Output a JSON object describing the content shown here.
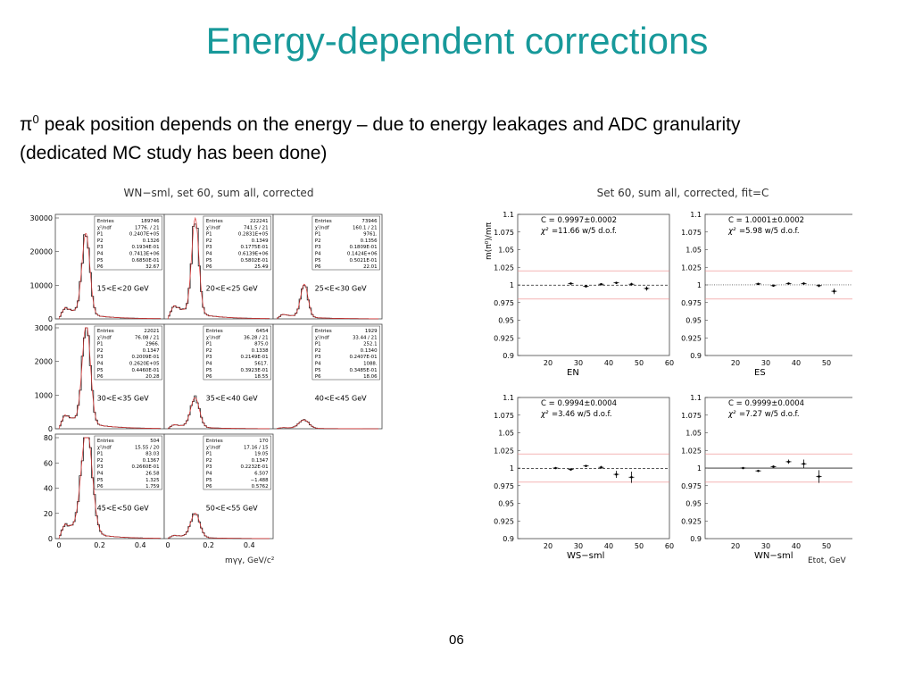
{
  "slide": {
    "title": "Energy-dependent corrections",
    "line1_symbol": "π",
    "line1_sup": "0",
    "line1_rest": " peak position depends on the energy – due to energy leakages and ADC granularity",
    "line2": "(dedicated MC study has been done)",
    "slide_number": "06"
  },
  "chart_data": [
    {
      "type": "histogram-grid",
      "title": "WN−sml, set 60, sum all, corrected",
      "xlabel": "mγγ, GeV/c²",
      "panels": [
        {
          "label": "15<E<20 GeV",
          "yticks": [
            "30000",
            "20000",
            "10000",
            "0"
          ],
          "ymax": 30000,
          "stats": [
            [
              "Entries",
              "189746"
            ],
            [
              "χ²/ndf",
              "1776. / 21"
            ],
            [
              "P1",
              "0.2407E+05"
            ],
            [
              "P2",
              "0.1326"
            ],
            [
              "P3",
              "0.1934E-01"
            ],
            [
              "P4",
              "0.7413E+06"
            ],
            [
              "P5",
              "0.6850E-01"
            ],
            [
              "P6",
              "32.67"
            ]
          ]
        },
        {
          "label": "20<E<25 GeV",
          "yticks": [],
          "ymax": 30000,
          "stats": [
            [
              "Entries",
              "222241"
            ],
            [
              "χ²/ndf",
              "741.5 / 21"
            ],
            [
              "P1",
              "0.2831E+05"
            ],
            [
              "P2",
              "0.1349"
            ],
            [
              "P3",
              "0.1775E-01"
            ],
            [
              "P4",
              "0.6139E+06"
            ],
            [
              "P5",
              "0.5802E-01"
            ],
            [
              "P6",
              "25.49"
            ]
          ]
        },
        {
          "label": "25<E<30 GeV",
          "yticks": [],
          "ymax": 30000,
          "stats": [
            [
              "Entries",
              "73946"
            ],
            [
              "χ²/ndf",
              "160.1 / 21"
            ],
            [
              "P1",
              "9761."
            ],
            [
              "P2",
              "0.1356"
            ],
            [
              "P3",
              "0.1809E-01"
            ],
            [
              "P4",
              "0.1424E+06"
            ],
            [
              "P5",
              "0.5021E-01"
            ],
            [
              "P6",
              "22.01"
            ]
          ]
        },
        {
          "label": "30<E<35 GeV",
          "yticks": [
            "3000",
            "2000",
            "1000",
            "0"
          ],
          "ymax": 3000,
          "stats": [
            [
              "Entries",
              "22021"
            ],
            [
              "χ²/ndf",
              "76.08 / 21"
            ],
            [
              "P1",
              "2966."
            ],
            [
              "P2",
              "0.1347"
            ],
            [
              "P3",
              "0.2009E-01"
            ],
            [
              "P4",
              "0.2620E+05"
            ],
            [
              "P5",
              "0.4460E-01"
            ],
            [
              "P6",
              "20.28"
            ]
          ]
        },
        {
          "label": "35<E<40 GeV",
          "yticks": [],
          "ymax": 3000,
          "stats": [
            [
              "Entries",
              "6454"
            ],
            [
              "χ²/ndf",
              "36.28 / 21"
            ],
            [
              "P1",
              "875.0"
            ],
            [
              "P2",
              "0.1338"
            ],
            [
              "P3",
              "0.2149E-01"
            ],
            [
              "P4",
              "5617."
            ],
            [
              "P5",
              "0.3923E-01"
            ],
            [
              "P6",
              "18.55"
            ]
          ]
        },
        {
          "label": "40<E<45 GeV",
          "yticks": [],
          "ymax": 3000,
          "stats": [
            [
              "Entries",
              "1929"
            ],
            [
              "χ²/ndf",
              "33.44 / 21"
            ],
            [
              "P1",
              "252.1"
            ],
            [
              "P2",
              "0.1340"
            ],
            [
              "P3",
              "0.2407E-01"
            ],
            [
              "P4",
              "1088."
            ],
            [
              "P5",
              "0.3485E-01"
            ],
            [
              "P6",
              "18.06"
            ]
          ]
        },
        {
          "label": "45<E<50 GeV",
          "yticks": [
            "80",
            "60",
            "40",
            "20",
            "0"
          ],
          "ymax": 80,
          "stats": [
            [
              "Entries",
              "504"
            ],
            [
              "χ²/ndf",
              "15.55 / 20"
            ],
            [
              "P1",
              "83.03"
            ],
            [
              "P2",
              "0.1367"
            ],
            [
              "P3",
              "0.2660E-01"
            ],
            [
              "P4",
              "26.58"
            ],
            [
              "P5",
              "1.325"
            ],
            [
              "P6",
              "1.759"
            ]
          ]
        },
        {
          "label": "50<E<55 GeV",
          "yticks": [],
          "ymax": 80,
          "stats": [
            [
              "Entries",
              "170"
            ],
            [
              "χ²/ndf",
              "17.16 / 15"
            ],
            [
              "P1",
              "19.05"
            ],
            [
              "P2",
              "0.1347"
            ],
            [
              "P3",
              "0.2232E-01"
            ],
            [
              "P4",
              "6.507"
            ],
            [
              "P5",
              "−1.488"
            ],
            [
              "P6",
              "0.5762"
            ]
          ]
        }
      ],
      "xticks": [
        "0",
        "0.2",
        "0.4"
      ]
    },
    {
      "type": "scatter",
      "title": "Set 60, sum all, corrected, fit=C",
      "ylabel": "m(π⁰)/mπ",
      "xlabel": "Etot, GeV",
      "xlim": [
        10,
        60
      ],
      "ylim": [
        0.9,
        1.1
      ],
      "xticks": [
        "20",
        "30",
        "40",
        "50",
        "60"
      ],
      "yticks": [
        "1.1",
        "1.075",
        "1.05",
        "1.025",
        "1",
        "0.975",
        "0.95",
        "0.925",
        "0.9"
      ],
      "panels": [
        {
          "name": "EN",
          "fit": "C = 0.9997±0.0002",
          "chi2": "=11.66 w/5 d.o.f.",
          "fitline": 0.9997,
          "points": [
            [
              27.5,
              1.002,
              0.001
            ],
            [
              32.5,
              0.998,
              0.001
            ],
            [
              37.5,
              1.001,
              0.001
            ],
            [
              42.5,
              1.003,
              0.0015
            ],
            [
              47.5,
              1.001,
              0.002
            ],
            [
              52.5,
              0.995,
              0.003
            ]
          ]
        },
        {
          "name": "ES",
          "fit": "C = 1.0001±0.0002",
          "chi2": "=5.98 w/5 d.o.f.",
          "fitline": 1.0001,
          "points": [
            [
              27.5,
              1.0015,
              0.001
            ],
            [
              32.5,
              0.999,
              0.001
            ],
            [
              37.5,
              1.002,
              0.001
            ],
            [
              42.5,
              1.002,
              0.0015
            ],
            [
              47.5,
              0.999,
              0.002
            ],
            [
              52.5,
              0.991,
              0.004
            ]
          ]
        },
        {
          "name": "WS−sml",
          "fit": "C = 0.9994±0.0004",
          "chi2": "=3.46 w/5 d.o.f.",
          "fitline": 0.9994,
          "points": [
            [
              22.5,
              1.0,
              0.001
            ],
            [
              27.5,
              0.998,
              0.001
            ],
            [
              32.5,
              1.003,
              0.0015
            ],
            [
              37.5,
              1.001,
              0.002
            ],
            [
              42.5,
              0.991,
              0.005
            ],
            [
              47.5,
              0.987,
              0.008
            ]
          ]
        },
        {
          "name": "WN−sml",
          "fit": "C = 0.9999±0.0004",
          "chi2": "=7.27 w/5 d.o.f.",
          "fitline": 0.9999,
          "points": [
            [
              22.5,
              1.0,
              0.001
            ],
            [
              27.5,
              0.996,
              0.001
            ],
            [
              32.5,
              1.002,
              0.0015
            ],
            [
              37.5,
              1.009,
              0.003
            ],
            [
              42.5,
              1.006,
              0.006
            ],
            [
              47.5,
              0.988,
              0.009
            ]
          ]
        }
      ]
    }
  ]
}
